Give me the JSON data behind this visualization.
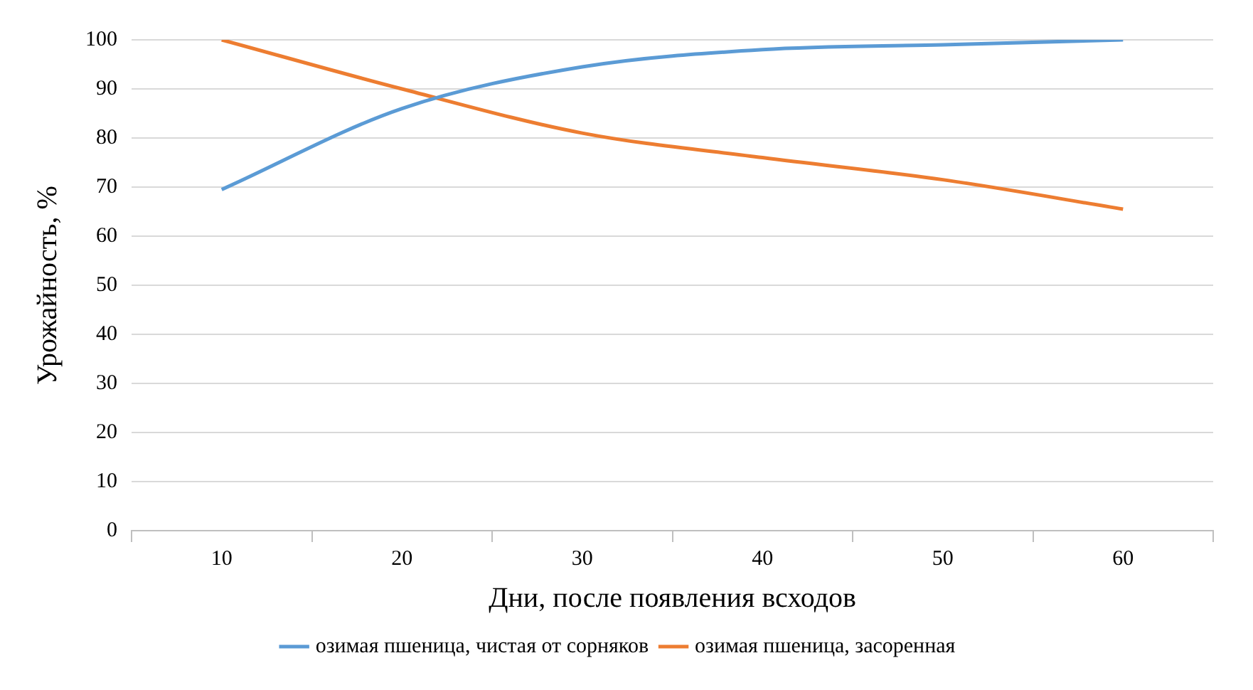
{
  "chart_data": {
    "type": "line",
    "xlabel": "Дни, после появления всходов",
    "ylabel": "Урожайность, %",
    "categories": [
      "10",
      "20",
      "30",
      "40",
      "50",
      "60"
    ],
    "series": [
      {
        "name": "озимая пшеница, чистая от сорняков",
        "color": "#5b9bd5",
        "values": [
          69.5,
          86,
          94.5,
          98,
          99,
          100
        ]
      },
      {
        "name": "озимая пшеница, засоренная",
        "color": "#ed7d31",
        "values": [
          100,
          90,
          81,
          76,
          71.5,
          65.5
        ]
      }
    ],
    "ylim": [
      0,
      100
    ],
    "yticks": [
      0,
      10,
      20,
      30,
      40,
      50,
      60,
      70,
      80,
      90,
      100
    ],
    "grid": "y",
    "legend": "bottom",
    "marker": "none",
    "line_style": "solid"
  }
}
